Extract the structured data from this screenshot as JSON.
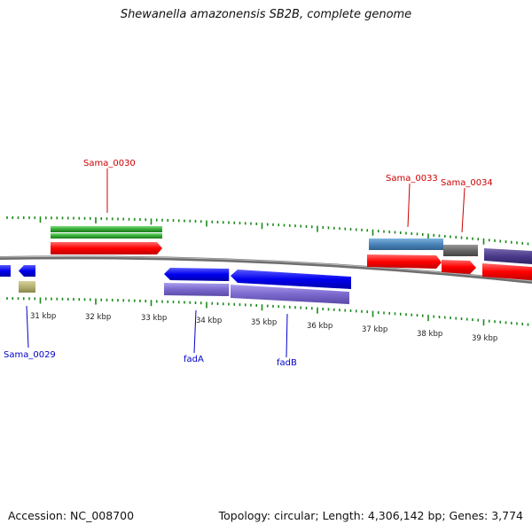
{
  "title": "Shewanella amazonensis SB2B, complete genome",
  "footer": {
    "accession": "Accession: NC_008700",
    "summary": "Topology: circular; Length: 4,306,142 bp; Genes: 3,774"
  },
  "colors": {
    "tick": "#1a8a1a",
    "backbone": "#777777",
    "forward_label": "#cc0000",
    "reverse_label": "#0000cc",
    "cds_red": "#ff0000",
    "gene_green": "#33aa33",
    "gene_blue": "#0000ee",
    "gene_purple": "#7b68cc",
    "gene_steel": "#4a84b8",
    "gene_gray": "#666666",
    "gene_olive": "#b5b070"
  },
  "ticks": [
    {
      "label": "31 kbp"
    },
    {
      "label": "32 kbp"
    },
    {
      "label": "33 kbp"
    },
    {
      "label": "34 kbp"
    },
    {
      "label": "35 kbp"
    },
    {
      "label": "36 kbp"
    },
    {
      "label": "37 kbp"
    },
    {
      "label": "38 kbp"
    },
    {
      "label": "39 kbp"
    }
  ],
  "gene_labels": [
    {
      "name": "Sama_0030",
      "strand": "forward"
    },
    {
      "name": "Sama_0033",
      "strand": "forward"
    },
    {
      "name": "Sama_0034",
      "strand": "forward"
    },
    {
      "name": "Sama_0029",
      "strand": "reverse"
    },
    {
      "name": "fadA",
      "strand": "reverse"
    },
    {
      "name": "fadB",
      "strand": "reverse"
    }
  ]
}
